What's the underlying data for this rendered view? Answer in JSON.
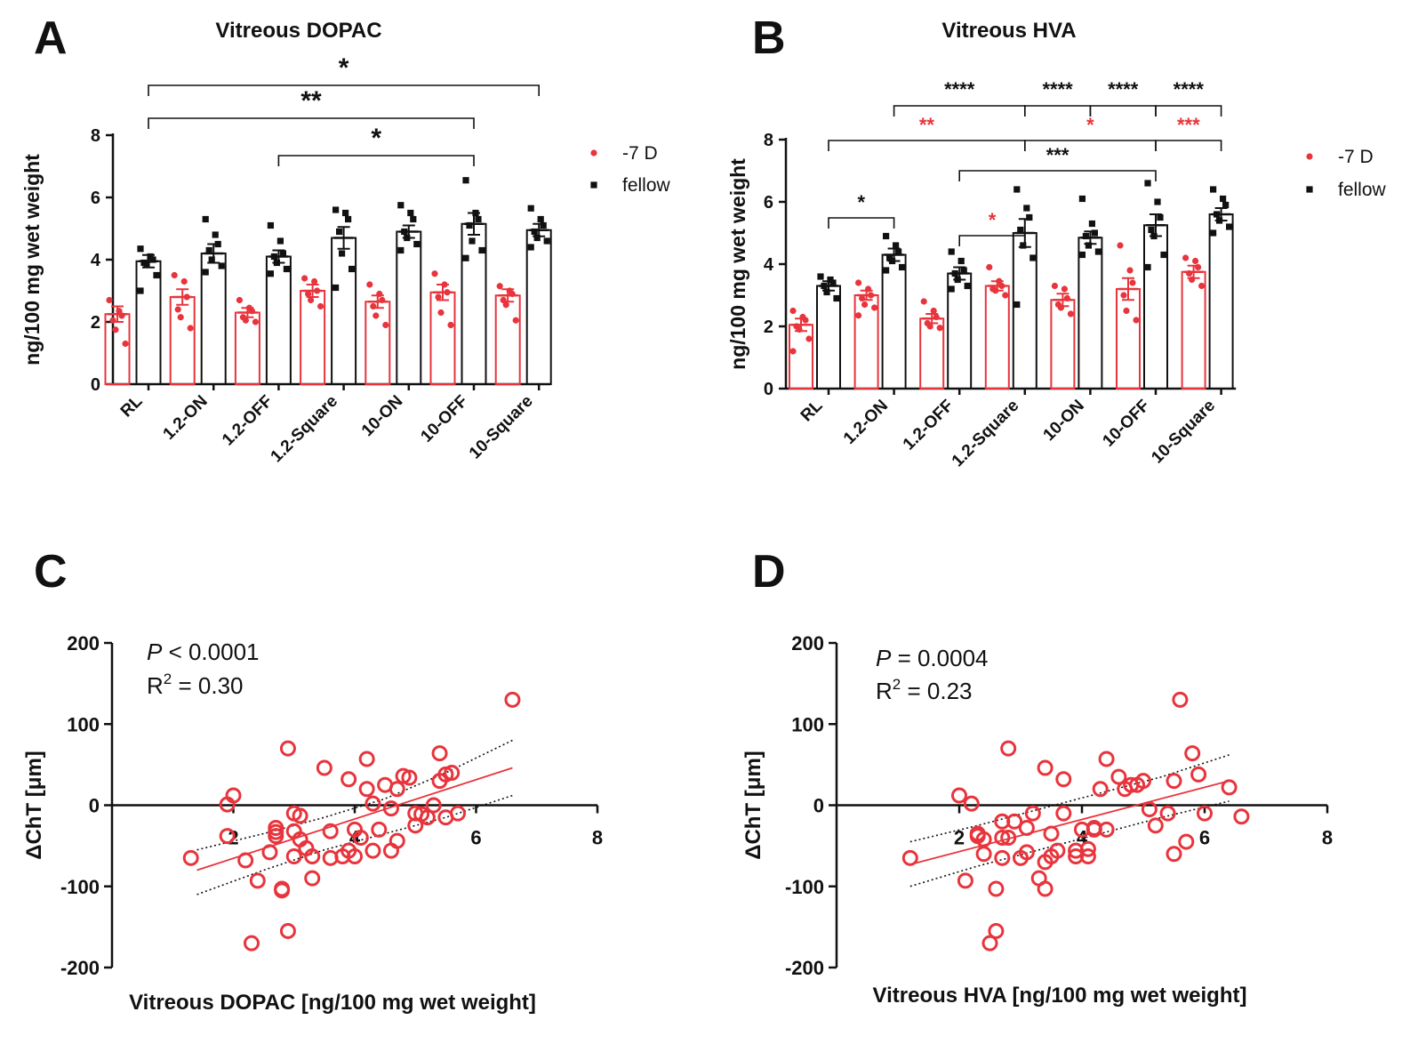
{
  "panels": {
    "A": {
      "letter": "A"
    },
    "B": {
      "letter": "B"
    },
    "C": {
      "letter": "C"
    },
    "D": {
      "letter": "D"
    }
  },
  "colors": {
    "red": "#e8343c",
    "black": "#111111"
  },
  "chart_data": [
    {
      "panel": "A",
      "type": "bar",
      "title": "Vitreous DOPAC",
      "ylabel": "ng/100 mg wet weight",
      "xlabel": "",
      "ylim": [
        0,
        8
      ],
      "yticks": [
        0,
        2,
        4,
        6,
        8
      ],
      "categories": [
        "RL",
        "1.2-ON",
        "1.2-OFF",
        "1.2-Square",
        "10-ON",
        "10-OFF",
        "10-Square"
      ],
      "legend": {
        "position": "top-right",
        "entries": [
          "-7 D",
          "fellow"
        ]
      },
      "series": [
        {
          "name": "-7 D",
          "color": "#e8343c",
          "values": [
            2.25,
            2.8,
            2.3,
            3.0,
            2.65,
            2.95,
            2.85
          ],
          "sem": [
            0.25,
            0.25,
            0.15,
            0.2,
            0.2,
            0.25,
            0.2
          ],
          "points": [
            [
              2.7,
              2.35,
              2.2,
              2.05,
              1.75,
              1.3
            ],
            [
              3.5,
              3.3,
              2.8,
              2.4,
              2.15,
              1.8
            ],
            [
              2.7,
              2.45,
              2.35,
              2.15,
              2.05,
              2.0
            ],
            [
              3.4,
              3.3,
              3.0,
              2.9,
              2.7,
              2.5
            ],
            [
              3.2,
              2.9,
              2.7,
              2.5,
              2.2,
              1.9
            ],
            [
              3.55,
              3.2,
              2.95,
              2.8,
              2.3,
              1.9
            ],
            [
              3.15,
              3.0,
              2.9,
              2.7,
              2.55,
              2.05
            ]
          ]
        },
        {
          "name": "fellow",
          "color": "#111111",
          "values": [
            3.95,
            4.2,
            4.1,
            4.7,
            4.9,
            5.15,
            4.95
          ],
          "sem": [
            0.2,
            0.3,
            0.2,
            0.35,
            0.2,
            0.35,
            0.2
          ],
          "points": [
            [
              4.35,
              4.1,
              4.0,
              3.9,
              3.85,
              3.5,
              3.0
            ],
            [
              5.3,
              4.8,
              4.5,
              4.3,
              4.0,
              3.8,
              3.6
            ],
            [
              5.1,
              4.6,
              4.2,
              4.1,
              3.9,
              3.7,
              3.55
            ],
            [
              5.6,
              5.5,
              5.3,
              4.9,
              4.2,
              3.7,
              3.1
            ],
            [
              5.75,
              5.5,
              5.3,
              4.9,
              4.7,
              4.5,
              4.3
            ],
            [
              6.55,
              5.5,
              5.3,
              5.1,
              4.6,
              4.3,
              4.05
            ],
            [
              5.65,
              5.3,
              5.1,
              4.9,
              4.7,
              4.6,
              4.4
            ]
          ]
        }
      ],
      "annotations": [
        {
          "from": "RL",
          "to": "10-Square",
          "label": "*",
          "color": "#111111"
        },
        {
          "from": "RL",
          "to": "10-OFF",
          "label": "**",
          "color": "#111111"
        },
        {
          "from": "1.2-OFF",
          "to": "10-OFF",
          "label": "*",
          "color": "#111111"
        }
      ]
    },
    {
      "panel": "B",
      "type": "bar",
      "title": "Vitreous HVA",
      "ylabel": "ng/100 mg wet weight",
      "xlabel": "",
      "ylim": [
        0,
        8
      ],
      "yticks": [
        0,
        2,
        4,
        6,
        8
      ],
      "categories": [
        "RL",
        "1.2-ON",
        "1.2-OFF",
        "1.2-Square",
        "10-ON",
        "10-OFF",
        "10-Square"
      ],
      "legend": {
        "position": "top-right",
        "entries": [
          "-7 D",
          "fellow"
        ]
      },
      "series": [
        {
          "name": "-7 D",
          "color": "#e8343c",
          "values": [
            2.05,
            3.0,
            2.25,
            3.3,
            2.85,
            3.2,
            3.75
          ],
          "sem": [
            0.2,
            0.15,
            0.15,
            0.15,
            0.2,
            0.35,
            0.2
          ],
          "points": [
            [
              2.5,
              2.3,
              2.2,
              2.0,
              1.9,
              1.6,
              1.2
            ],
            [
              3.4,
              3.2,
              3.0,
              2.9,
              2.7,
              2.6,
              2.35
            ],
            [
              2.8,
              2.5,
              2.3,
              2.1,
              2.0,
              1.95
            ],
            [
              3.9,
              3.45,
              3.3,
              3.2,
              3.15,
              3.0
            ],
            [
              3.3,
              3.2,
              2.9,
              2.7,
              2.6,
              2.4
            ],
            [
              4.6,
              3.8,
              3.4,
              3.0,
              2.5,
              2.2
            ],
            [
              4.2,
              4.1,
              3.9,
              3.7,
              3.5,
              3.3
            ]
          ]
        },
        {
          "name": "fellow",
          "color": "#111111",
          "values": [
            3.3,
            4.3,
            3.7,
            5.0,
            4.85,
            5.25,
            5.6
          ],
          "sem": [
            0.15,
            0.2,
            0.2,
            0.45,
            0.2,
            0.35,
            0.2
          ],
          "points": [
            [
              3.6,
              3.5,
              3.4,
              3.3,
              3.1,
              2.9
            ],
            [
              4.9,
              4.6,
              4.4,
              4.2,
              4.1,
              3.9,
              3.8
            ],
            [
              4.4,
              4.1,
              3.8,
              3.7,
              3.5,
              3.3,
              3.2
            ],
            [
              6.4,
              5.8,
              5.5,
              5.1,
              4.6,
              4.2,
              2.7
            ],
            [
              6.1,
              5.3,
              5.0,
              4.9,
              4.6,
              4.4,
              4.3
            ],
            [
              6.6,
              6.0,
              5.5,
              5.1,
              4.9,
              4.3,
              3.9
            ],
            [
              6.4,
              6.1,
              5.9,
              5.6,
              5.4,
              5.2,
              5.0
            ]
          ]
        }
      ],
      "annotations": [
        {
          "from": "1.2-ON",
          "to": "1.2-Square",
          "label": "****",
          "color": "#111111"
        },
        {
          "from": "1.2-Square",
          "to": "10-ON",
          "label": "****",
          "color": "#111111"
        },
        {
          "from": "10-ON",
          "to": "10-OFF",
          "label": "****",
          "color": "#111111"
        },
        {
          "from": "10-OFF",
          "to": "10-Square",
          "label": "****",
          "color": "#111111"
        },
        {
          "from": "RL",
          "to": "1.2-Square",
          "label": "**",
          "color": "#e8343c"
        },
        {
          "from": "1.2-Square",
          "to": "10-OFF",
          "label": "*",
          "color": "#e8343c"
        },
        {
          "from": "10-OFF",
          "to": "10-Square",
          "label": "***",
          "color": "#e8343c"
        },
        {
          "from": "1.2-OFF",
          "to": "10-OFF",
          "label": "***",
          "color": "#111111"
        },
        {
          "from": "RL",
          "to": "1.2-ON",
          "label": "*",
          "color": "#111111"
        },
        {
          "from": "1.2-OFF",
          "to": "1.2-Square",
          "label": "*",
          "color": "#e8343c"
        }
      ]
    },
    {
      "panel": "C",
      "type": "scatter",
      "title": "",
      "xlabel": "Vitreous DOPAC [ng/100 mg wet weight]",
      "ylabel": "ΔChT [μm]",
      "xlim": [
        0,
        8
      ],
      "ylim": [
        -200,
        200
      ],
      "xticks": [
        2,
        4,
        6,
        8
      ],
      "yticks": [
        -200,
        -100,
        0,
        100,
        200
      ],
      "stats": {
        "p_label": "P",
        "p_text": " < 0.0001",
        "r2_label": "R",
        "r2_text": " = 0.30"
      },
      "fit": {
        "x": [
          1.4,
          6.6
        ],
        "y": [
          -80,
          46
        ]
      },
      "ci_upper": {
        "x": [
          1.4,
          2.5,
          3.5,
          4.5,
          5.5,
          6.6
        ],
        "y": [
          -55,
          -35,
          -15,
          8,
          40,
          80
        ]
      },
      "ci_lower": {
        "x": [
          1.4,
          2.5,
          3.5,
          4.5,
          5.5,
          6.6
        ],
        "y": [
          -110,
          -80,
          -55,
          -35,
          -15,
          12
        ]
      },
      "x": [
        1.3,
        1.9,
        1.9,
        2.0,
        2.2,
        2.3,
        2.4,
        2.6,
        2.7,
        2.7,
        2.7,
        2.8,
        2.8,
        2.9,
        2.9,
        3.0,
        3.0,
        3.0,
        3.1,
        3.1,
        3.2,
        3.3,
        3.3,
        3.5,
        3.6,
        3.6,
        3.8,
        3.9,
        3.9,
        4.0,
        4.0,
        4.1,
        4.2,
        4.2,
        4.3,
        4.3,
        4.4,
        4.5,
        4.6,
        4.6,
        4.7,
        4.7,
        4.8,
        4.9,
        5.0,
        5.0,
        5.1,
        5.2,
        5.3,
        5.4,
        5.4,
        5.5,
        5.5,
        5.6,
        5.7,
        6.6
      ],
      "y": [
        -65,
        -38,
        1,
        12,
        -68,
        -170,
        -93,
        -58,
        -38,
        -33,
        -28,
        -105,
        -103,
        -155,
        70,
        -10,
        -32,
        -63,
        -42,
        -13,
        -53,
        -90,
        -63,
        46,
        -32,
        -65,
        -63,
        -56,
        32,
        -63,
        -30,
        -40,
        20,
        57,
        -56,
        2,
        -30,
        25,
        -56,
        -4,
        -44,
        20,
        36,
        34,
        -25,
        -10,
        -11,
        -15,
        0,
        30,
        64,
        38,
        -15,
        40,
        -10,
        130
      ]
    },
    {
      "panel": "D",
      "type": "scatter",
      "title": "",
      "xlabel": "Vitreous HVA [ng/100 mg wet weight]",
      "ylabel": "ΔChT [μm]",
      "xlim": [
        0,
        8
      ],
      "ylim": [
        -200,
        200
      ],
      "xticks": [
        2,
        4,
        6,
        8
      ],
      "yticks": [
        -200,
        -100,
        0,
        100,
        200
      ],
      "stats": {
        "p_label": "P",
        "p_text": " = 0.0004",
        "r2_label": "R",
        "r2_text": " = 0.23"
      },
      "fit": {
        "x": [
          1.2,
          6.4
        ],
        "y": [
          -73,
          30
        ]
      },
      "ci_upper": {
        "x": [
          1.2,
          2.3,
          3.3,
          4.3,
          5.3,
          6.4
        ],
        "y": [
          -45,
          -25,
          -5,
          15,
          35,
          62
        ]
      },
      "ci_lower": {
        "x": [
          1.2,
          2.3,
          3.3,
          4.3,
          5.3,
          6.4
        ],
        "y": [
          -100,
          -75,
          -55,
          -35,
          -15,
          5
        ]
      },
      "x": [
        1.2,
        2.0,
        2.1,
        2.2,
        2.3,
        2.3,
        2.4,
        2.4,
        2.5,
        2.6,
        2.6,
        2.7,
        2.7,
        2.7,
        2.8,
        2.8,
        2.9,
        3.0,
        3.1,
        3.1,
        3.2,
        3.3,
        3.4,
        3.4,
        3.4,
        3.5,
        3.5,
        3.6,
        3.7,
        3.7,
        3.9,
        3.9,
        4.0,
        4.1,
        4.1,
        4.2,
        4.2,
        4.3,
        4.4,
        4.4,
        4.6,
        4.7,
        4.8,
        4.9,
        5.0,
        5.1,
        5.2,
        5.4,
        5.5,
        5.5,
        5.6,
        5.7,
        5.8,
        5.9,
        6.0,
        6.4,
        6.6
      ],
      "y": [
        -65,
        12,
        -93,
        2,
        -35,
        -38,
        -42,
        -60,
        -170,
        -155,
        -103,
        -65,
        -20,
        -40,
        70,
        -40,
        -20,
        -65,
        -58,
        -28,
        -10,
        -90,
        -103,
        46,
        -70,
        -35,
        -63,
        -56,
        -10,
        32,
        -63,
        -56,
        -30,
        -54,
        -63,
        -28,
        -30,
        20,
        57,
        -30,
        35,
        20,
        25,
        25,
        30,
        -5,
        -25,
        -10,
        30,
        -60,
        130,
        -45,
        64,
        38,
        -10,
        22,
        -14
      ]
    }
  ]
}
